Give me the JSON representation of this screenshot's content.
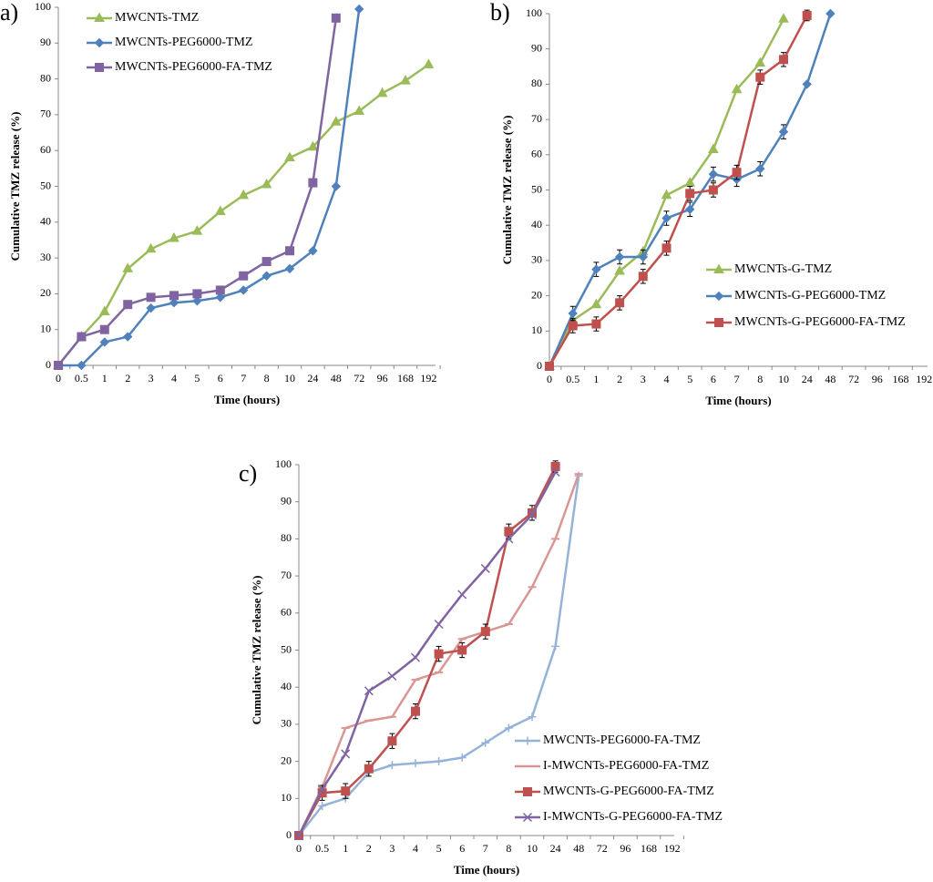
{
  "chart_data": [
    {
      "type": "line",
      "label": "a)",
      "xlabel": "Time (hours)",
      "ylabel": "Cumulative TMZ release (%)",
      "categories": [
        "0",
        "0.5",
        "1",
        "2",
        "3",
        "4",
        "5",
        "6",
        "7",
        "8",
        "10",
        "24",
        "48",
        "72",
        "96",
        "168",
        "192"
      ],
      "ylim": [
        0,
        100
      ],
      "yticks": [
        0,
        10,
        20,
        30,
        40,
        50,
        60,
        70,
        80,
        90,
        100
      ],
      "legend": "upper left",
      "series": [
        {
          "name": "MWCNTs-TMZ",
          "color": "#9bbb59",
          "marker": "triangle",
          "values": [
            0,
            8,
            15,
            27,
            32.5,
            35.5,
            37.5,
            43,
            47.5,
            50.5,
            58,
            61,
            68,
            71,
            76,
            79.5,
            84
          ]
        },
        {
          "name": "MWCNTs-PEG6000-TMZ",
          "color": "#4f81bd",
          "marker": "diamond",
          "values": [
            0,
            0,
            6.5,
            8,
            16,
            17.5,
            18,
            19,
            21,
            25,
            27,
            32,
            50,
            99.5,
            null,
            null,
            null
          ]
        },
        {
          "name": "MWCNTs-PEG6000-FA-TMZ",
          "color": "#8064a2",
          "marker": "square",
          "values": [
            0,
            8,
            10,
            17,
            19,
            19.5,
            20,
            21,
            25,
            29,
            32,
            51,
            97,
            null,
            null,
            null,
            null
          ]
        }
      ]
    },
    {
      "type": "line",
      "label": "b)",
      "xlabel": "Time (hours)",
      "ylabel": "Cumulative TMZ release (%)",
      "categories": [
        "0",
        "0.5",
        "1",
        "2",
        "3",
        "4",
        "5",
        "6",
        "7",
        "8",
        "10",
        "24",
        "48",
        "72",
        "96",
        "168",
        "192"
      ],
      "ylim": [
        0,
        100
      ],
      "yticks": [
        0,
        10,
        20,
        30,
        40,
        50,
        60,
        70,
        80,
        90,
        100
      ],
      "legend": "center right",
      "series": [
        {
          "name": "MWCNTs-G-TMZ",
          "color": "#9bbb59",
          "marker": "triangle",
          "values": [
            0,
            13,
            17.5,
            27,
            32.5,
            48.5,
            52,
            61.5,
            78.5,
            86,
            98.5,
            null,
            null,
            null,
            null,
            null,
            null
          ]
        },
        {
          "name": "MWCNTs-G-PEG6000-TMZ",
          "color": "#4f81bd",
          "marker": "diamond",
          "values": [
            0,
            15,
            27.5,
            31,
            31,
            42,
            44.5,
            54.5,
            53,
            56,
            66.5,
            80,
            100,
            null,
            null,
            null,
            null
          ],
          "errors": [
            0,
            2,
            2,
            2,
            2,
            2,
            2,
            2,
            2,
            2,
            2,
            0,
            0,
            null,
            null,
            null,
            null
          ]
        },
        {
          "name": "MWCNTs-G-PEG6000-FA-TMZ",
          "color": "#c0504d",
          "marker": "square",
          "values": [
            0,
            11.5,
            12,
            18,
            25.5,
            33.5,
            49,
            50,
            55,
            82,
            87,
            99.5,
            null,
            null,
            null,
            null,
            null
          ],
          "errors": [
            0,
            2,
            2,
            2,
            2,
            2,
            2,
            2,
            2,
            2,
            2,
            1.5,
            null,
            null,
            null,
            null,
            null
          ]
        }
      ]
    },
    {
      "type": "line",
      "label": "c)",
      "xlabel": "Time (hours)",
      "ylabel": "Cumulative TMZ release (%)",
      "categories": [
        "0",
        "0.5",
        "1",
        "2",
        "3",
        "4",
        "5",
        "6",
        "7",
        "8",
        "10",
        "24",
        "48",
        "72",
        "96",
        "168",
        "192"
      ],
      "ylim": [
        0,
        100
      ],
      "yticks": [
        0,
        10,
        20,
        30,
        40,
        50,
        60,
        70,
        80,
        90,
        100
      ],
      "legend": "lower right",
      "series": [
        {
          "name": "MWCNTs-PEG6000-FA-TMZ",
          "color": "#95b3d7",
          "marker": "plus",
          "values": [
            0,
            8,
            10,
            17,
            19,
            19.5,
            20,
            21,
            25,
            29,
            32,
            51,
            97,
            null,
            null,
            null,
            null
          ]
        },
        {
          "name": "I-MWCNTs-PEG6000-FA-TMZ",
          "color": "#d99694",
          "marker": "dash",
          "values": [
            0,
            13,
            29,
            31,
            32,
            42,
            44,
            53,
            55,
            57,
            67,
            80,
            97.5,
            null,
            null,
            null,
            null
          ]
        },
        {
          "name": "MWCNTs-G-PEG6000-FA-TMZ",
          "color": "#c0504d",
          "marker": "square",
          "values": [
            0,
            11.5,
            12,
            18,
            25.5,
            33.5,
            49,
            50,
            55,
            82,
            87,
            99.5,
            null,
            null,
            null,
            null,
            null
          ],
          "errors": [
            0,
            2,
            2,
            2,
            2,
            2,
            2,
            2,
            2,
            2,
            2,
            1.5,
            null,
            null,
            null,
            null,
            null
          ]
        },
        {
          "name": "I-MWCNTs-G-PEG6000-FA-TMZ",
          "color": "#8064a2",
          "marker": "x",
          "values": [
            0,
            12.5,
            22,
            39,
            43,
            48,
            57,
            65,
            72,
            80,
            86.5,
            98,
            null,
            null,
            null,
            null,
            null
          ]
        }
      ]
    }
  ]
}
